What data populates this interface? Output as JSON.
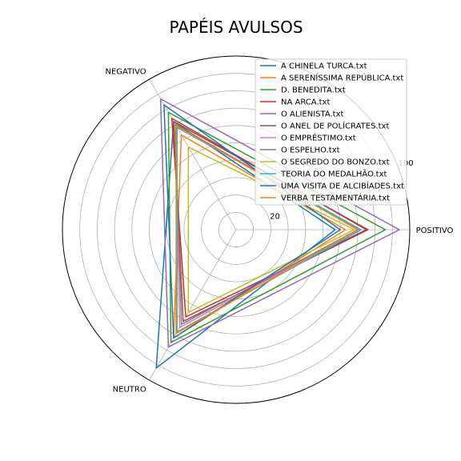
{
  "chart_data": {
    "type": "radar",
    "title": "PAPÉIS AVULSOS",
    "axes": [
      "POSITIVO",
      "NEGATIVO",
      "NEUTRO"
    ],
    "rlim": [
      0,
      100
    ],
    "rticks": [
      20,
      40,
      60,
      80,
      100
    ],
    "rtick_labels": [
      "20",
      "40",
      "",
      "",
      "100"
    ],
    "grid": true,
    "legend_position": "top-right",
    "series": [
      {
        "name": "A CHINELA TURCA.txt",
        "color": "#1f77b4",
        "values": [
          57,
          72,
          92
        ]
      },
      {
        "name": "A SERENÍSSIMA REPÚBLICA.txt",
        "color": "#ff7f0e",
        "values": [
          63,
          63,
          72
        ]
      },
      {
        "name": "D. BENEDITA.txt",
        "color": "#2ca02c",
        "values": [
          86,
          78,
          75
        ]
      },
      {
        "name": "NA ARCA.txt",
        "color": "#d62728",
        "values": [
          75,
          74,
          58
        ]
      },
      {
        "name": "O ALIENISTA.txt",
        "color": "#9467bd",
        "values": [
          94,
          87,
          78
        ]
      },
      {
        "name": "O ANEL DE POLÍCRATES.txt",
        "color": "#8c564b",
        "values": [
          76,
          72,
          61
        ]
      },
      {
        "name": "O EMPRÉSTIMO.txt",
        "color": "#e377c2",
        "values": [
          71,
          70,
          65
        ]
      },
      {
        "name": "O ESPELHO.txt",
        "color": "#7f7f7f",
        "values": [
          70,
          70,
          63
        ]
      },
      {
        "name": "O SEGREDO DO BONZO.txt",
        "color": "#bcbd22",
        "values": [
          68,
          55,
          55
        ]
      },
      {
        "name": "TEORIA DO MEDALHÃO.txt",
        "color": "#17becf",
        "values": [
          72,
          68,
          68
        ]
      },
      {
        "name": "UMA VISITA DE ALCIBÍADES.txt",
        "color": "#1f77b4",
        "values": [
          60,
          83,
          72
        ]
      },
      {
        "name": "VERBA TESTAMENTÁRIA.txt",
        "color": "#ff7f0e",
        "values": [
          70,
          69,
          69
        ]
      }
    ]
  }
}
